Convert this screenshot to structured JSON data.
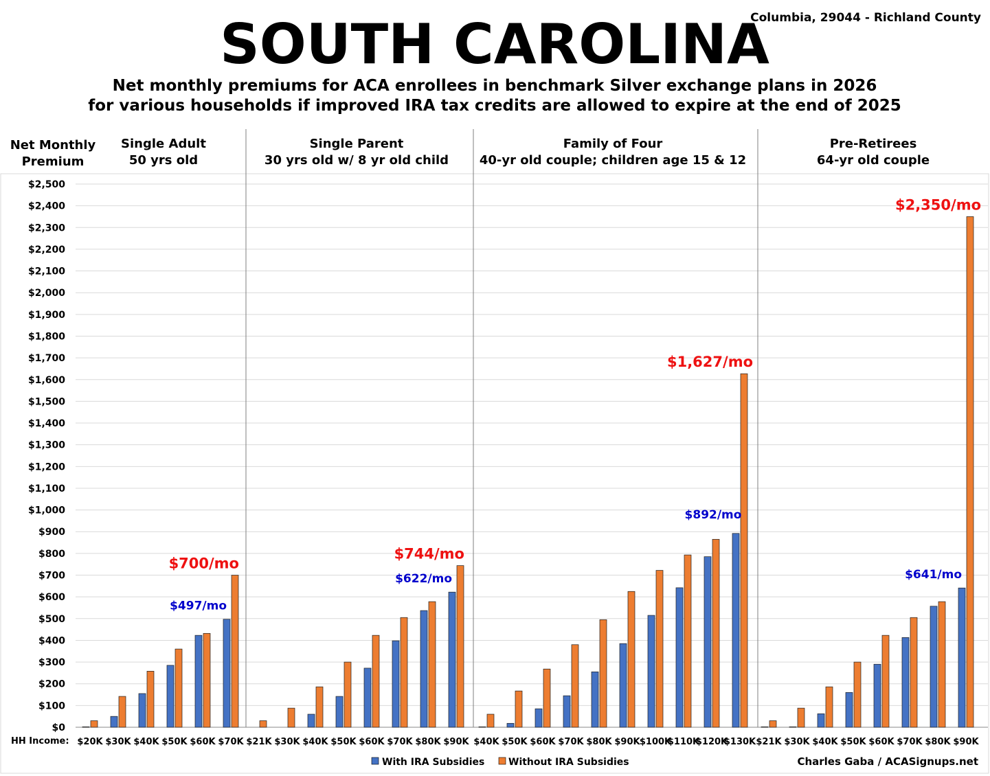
{
  "chart_data": {
    "type": "bar",
    "title": "SOUTH CAROLINA",
    "subtitle_lines": [
      "Net monthly premiums for ACA enrollees in benchmark Silver exchange plans in 2026",
      "for various households if improved IRA tax credits are allowed to expire at the end of 2025"
    ],
    "location": "Columbia, 29044 - Richland County",
    "ylabel_lines": [
      "Net Monthly",
      "Premium"
    ],
    "xlabel": "HH Income:",
    "ylim": [
      0,
      2500
    ],
    "ytick_step": 100,
    "ytick_labels": [
      "$0",
      "$100",
      "$200",
      "$300",
      "$400",
      "$500",
      "$600",
      "$700",
      "$800",
      "$900",
      "$1,000",
      "$1,100",
      "$1,200",
      "$1,300",
      "$1,400",
      "$1,500",
      "$1,600",
      "$1,700",
      "$1,800",
      "$1,900",
      "$2,000",
      "$2,100",
      "$2,200",
      "$2,300",
      "$2,400",
      "$2,500"
    ],
    "grid": true,
    "legend_position": "bottom-center",
    "series_names": [
      "With IRA Subsidies",
      "Without IRA Subsidies"
    ],
    "series_colors": [
      "#4472C4",
      "#ED7D31"
    ],
    "annotation_colors": {
      "with": "#0000CC",
      "without": "#EE1111"
    },
    "credit": "Charles Gaba / ACASignups.net",
    "groups": [
      {
        "label_lines": [
          "Single Adult",
          "50 yrs old"
        ],
        "categories": [
          "$20K",
          "$30K",
          "$40K",
          "$50K",
          "$60K",
          "$70K"
        ],
        "with": [
          2,
          50,
          155,
          285,
          423,
          497
        ],
        "without": [
          30,
          142,
          258,
          360,
          432,
          700
        ],
        "annotation_with": "$497/mo",
        "annotation_without": "$700/mo"
      },
      {
        "label_lines": [
          "Single Parent",
          "30 yrs old w/ 8 yr old child"
        ],
        "categories": [
          "$21K",
          "$30K",
          "$40K",
          "$50K",
          "$60K",
          "$70K",
          "$80K",
          "$90K"
        ],
        "with": [
          0,
          0,
          60,
          142,
          272,
          398,
          537,
          622
        ],
        "without": [
          30,
          88,
          186,
          300,
          423,
          505,
          578,
          744
        ],
        "annotation_with": "$622/mo",
        "annotation_without": "$744/mo"
      },
      {
        "label_lines": [
          "Family of Four",
          "40-yr old couple; children age 15 & 12"
        ],
        "categories": [
          "$40K",
          "$50K",
          "$60K",
          "$70K",
          "$80K",
          "$90K",
          "$100K",
          "$110K",
          "$120K",
          "$130K"
        ],
        "with": [
          2,
          18,
          85,
          145,
          255,
          385,
          515,
          642,
          785,
          892
        ],
        "without": [
          60,
          167,
          268,
          380,
          495,
          625,
          722,
          793,
          865,
          1627
        ],
        "annotation_with": "$892/mo",
        "annotation_without": "$1,627/mo"
      },
      {
        "label_lines": [
          "Pre-Retirees",
          "64-yr old couple"
        ],
        "categories": [
          "$21K",
          "$30K",
          "$40K",
          "$50K",
          "$60K",
          "$70K",
          "$80K",
          "$90K"
        ],
        "with": [
          2,
          2,
          62,
          160,
          290,
          413,
          557,
          641
        ],
        "without": [
          30,
          88,
          186,
          300,
          423,
          505,
          578,
          2350
        ],
        "annotation_with": "$641/mo",
        "annotation_without": "$2,350/mo"
      }
    ]
  }
}
